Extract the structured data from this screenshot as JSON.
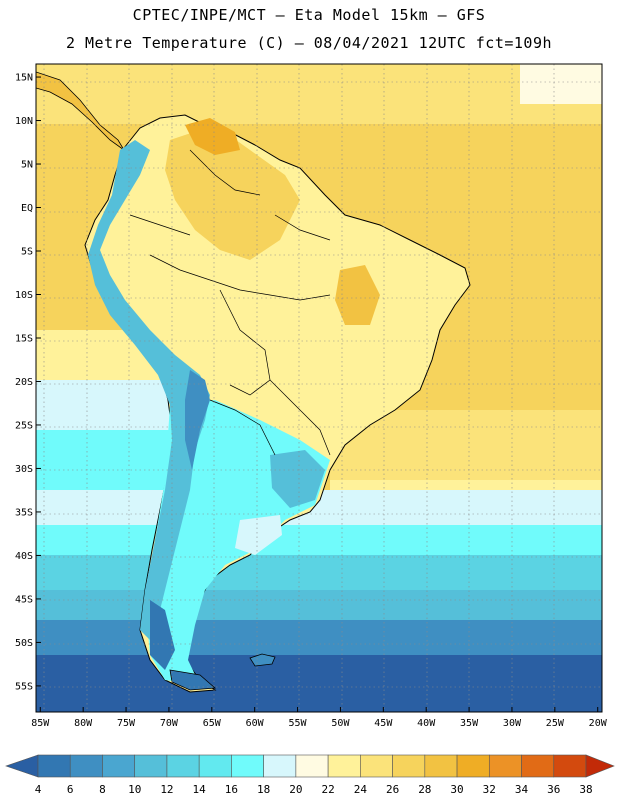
{
  "header": {
    "line1": "CPTEC/INPE/MCT –  Eta Model 15km – GFS",
    "line2": "2 Metre Temperature (C) – 08/04/2021 12UTC fct=109h"
  },
  "map": {
    "lat_labels": [
      "15N",
      "10N",
      "5N",
      "EQ",
      "5S",
      "10S",
      "15S",
      "20S",
      "25S",
      "30S",
      "35S",
      "40S",
      "45S",
      "50S",
      "55S"
    ],
    "lon_labels": [
      "85W",
      "80W",
      "75W",
      "70W",
      "65W",
      "60W",
      "55W",
      "50W",
      "45W",
      "40W",
      "35W",
      "30W",
      "25W",
      "20W"
    ],
    "lat_range": [
      -58,
      16.5
    ],
    "lon_range": [
      -85.5,
      -19.5
    ]
  },
  "colorbar": {
    "ticks": [
      "4",
      "6",
      "8",
      "10",
      "12",
      "14",
      "16",
      "18",
      "20",
      "22",
      "24",
      "26",
      "28",
      "30",
      "32",
      "34",
      "36",
      "38"
    ],
    "colors": [
      "#2a5fa3",
      "#3277b2",
      "#3f8fc2",
      "#4aa6d0",
      "#55bfd9",
      "#5bd3e3",
      "#62e9ef",
      "#70fbfb",
      "#d7f7fc",
      "#fffbe2",
      "#fff29a",
      "#fbe37a",
      "#f6d35c",
      "#f2c242",
      "#efad25",
      "#ec9226",
      "#e16b16",
      "#d34a0e",
      "#c22a08"
    ]
  }
}
